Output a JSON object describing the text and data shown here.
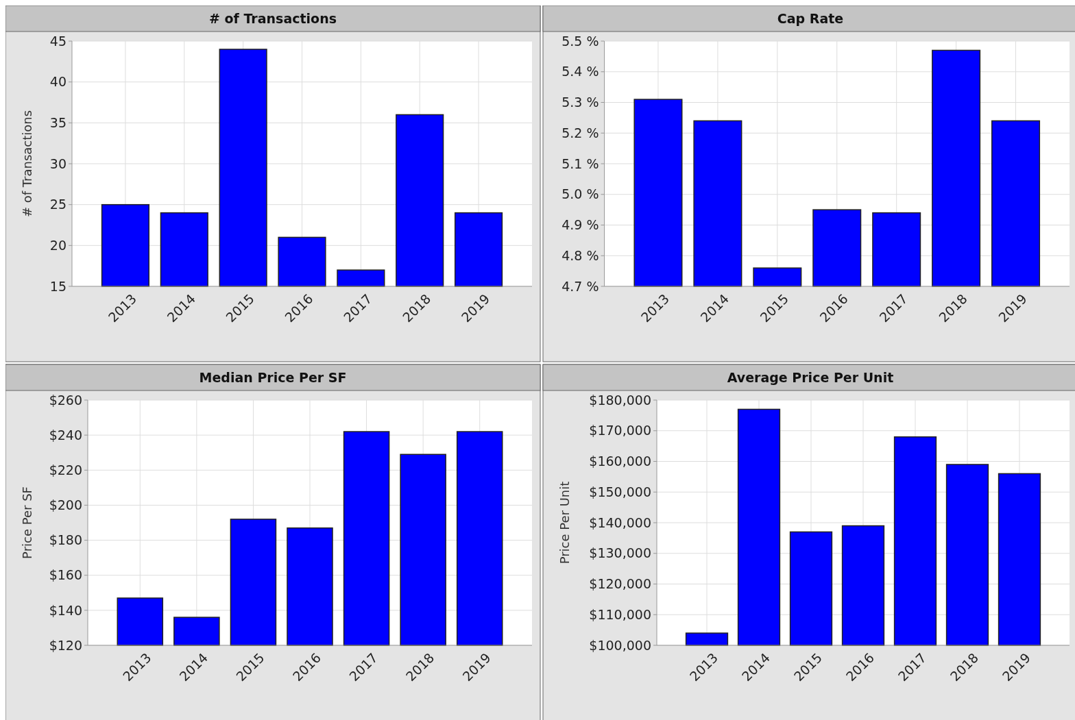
{
  "chart_data": [
    {
      "type": "bar",
      "title": "# of Transactions",
      "ylabel": "# of Transactions",
      "categories": [
        "2013",
        "2014",
        "2015",
        "2016",
        "2017",
        "2018",
        "2019"
      ],
      "values": [
        25,
        24,
        44,
        21,
        17,
        36,
        24
      ],
      "color": "#0000ff",
      "ylim": [
        15,
        45
      ],
      "yticks": [
        15,
        20,
        25,
        30,
        35,
        40,
        45
      ],
      "grid": true
    },
    {
      "type": "bar",
      "title": "Cap Rate",
      "categories": [
        "2013",
        "2014",
        "2015",
        "2016",
        "2017",
        "2018",
        "2019"
      ],
      "values": [
        5.31,
        5.24,
        4.76,
        4.95,
        4.94,
        5.47,
        5.24
      ],
      "color": "#0000ff",
      "ylim": [
        4.7,
        5.5
      ],
      "yticks": [
        {
          "value": 4.7,
          "label": "4.7 %"
        },
        {
          "value": 4.8,
          "label": "4.8 %"
        },
        {
          "value": 4.9,
          "label": "4.9 %"
        },
        {
          "value": 5.0,
          "label": "5.0 %"
        },
        {
          "value": 5.1,
          "label": "5.1 %"
        },
        {
          "value": 5.2,
          "label": "5.2 %"
        },
        {
          "value": 5.3,
          "label": "5.3 %"
        },
        {
          "value": 5.4,
          "label": "5.4 %"
        },
        {
          "value": 5.5,
          "label": "5.5 %"
        }
      ],
      "grid": true
    },
    {
      "type": "bar",
      "title": "Median Price Per SF",
      "ylabel": "Price Per SF",
      "categories": [
        "2013",
        "2014",
        "2015",
        "2016",
        "2017",
        "2018",
        "2019"
      ],
      "values": [
        147,
        136,
        192,
        187,
        242,
        229,
        242
      ],
      "color": "#0000ff",
      "ylim": [
        120,
        260
      ],
      "yticks": [
        {
          "value": 120,
          "label": "$120"
        },
        {
          "value": 140,
          "label": "$140"
        },
        {
          "value": 160,
          "label": "$160"
        },
        {
          "value": 180,
          "label": "$180"
        },
        {
          "value": 200,
          "label": "$200"
        },
        {
          "value": 220,
          "label": "$220"
        },
        {
          "value": 240,
          "label": "$240"
        },
        {
          "value": 260,
          "label": "$260"
        }
      ],
      "grid": true
    },
    {
      "type": "bar",
      "title": "Average Price Per Unit",
      "ylabel": "Price Per Unit",
      "categories": [
        "2013",
        "2014",
        "2015",
        "2016",
        "2017",
        "2018",
        "2019"
      ],
      "values": [
        104000,
        177000,
        137000,
        139000,
        168000,
        159000,
        156000
      ],
      "color": "#0000ff",
      "ylim": [
        100000,
        180000
      ],
      "yticks": [
        {
          "value": 100000,
          "label": "$100,000"
        },
        {
          "value": 110000,
          "label": "$110,000"
        },
        {
          "value": 120000,
          "label": "$120,000"
        },
        {
          "value": 130000,
          "label": "$130,000"
        },
        {
          "value": 140000,
          "label": "$140,000"
        },
        {
          "value": 150000,
          "label": "$150,000"
        },
        {
          "value": 160000,
          "label": "$160,000"
        },
        {
          "value": 170000,
          "label": "$170,000"
        },
        {
          "value": 180000,
          "label": "$180,000"
        }
      ],
      "grid": true
    }
  ]
}
